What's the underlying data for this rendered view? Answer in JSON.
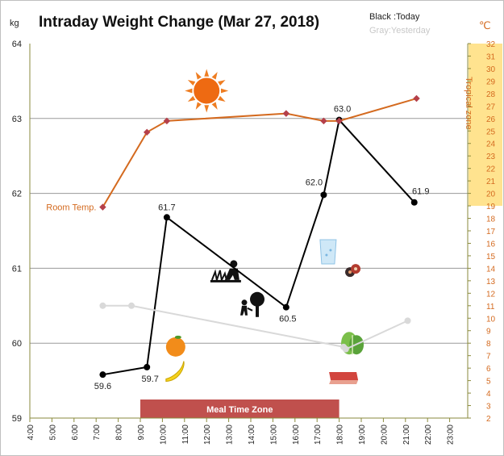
{
  "chart_data": {
    "type": "line",
    "title": "Intraday Weight Change (Mar 27, 2018)",
    "legend": {
      "today": "Black :Today",
      "yesterday": "Gray:Yesterday"
    },
    "y_left": {
      "unit": "kg",
      "min": 59,
      "max": 64,
      "ticks": [
        59,
        60,
        61,
        62,
        63,
        64
      ]
    },
    "y_right": {
      "unit": "℃",
      "min": 2,
      "max": 32,
      "ticks": [
        2,
        3,
        4,
        5,
        6,
        7,
        8,
        9,
        10,
        11,
        12,
        13,
        14,
        15,
        16,
        17,
        18,
        19,
        20,
        21,
        22,
        23,
        24,
        25,
        26,
        27,
        28,
        29,
        30,
        31,
        32
      ],
      "highlight_from": 19,
      "highlight_to": 32,
      "highlight_label": "Tropical zone"
    },
    "x_axis": {
      "min": 4,
      "max": 24,
      "tick_labels": [
        "4:00",
        "5:00",
        "6:00",
        "7:00",
        "8:00",
        "9:00",
        "10:00",
        "11:00",
        "12:00",
        "13:00",
        "14:00",
        "15:00",
        "16:00",
        "17:00",
        "18:00",
        "19:00",
        "20:00",
        "21:00",
        "22:00",
        "23:00"
      ]
    },
    "meal_zone": {
      "label": "Meal Time Zone",
      "from": 9.0,
      "to": 18.0
    },
    "series": [
      {
        "name": "Today",
        "color": "#000000",
        "points": [
          {
            "x": 7.3,
            "y": 59.58,
            "label": "59.6"
          },
          {
            "x": 9.3,
            "y": 59.68,
            "label": "59.7"
          },
          {
            "x": 10.2,
            "y": 61.68,
            "label": "61.7"
          },
          {
            "x": 15.6,
            "y": 60.48,
            "label": "60.5"
          },
          {
            "x": 17.3,
            "y": 61.98,
            "label": "62.0"
          },
          {
            "x": 18.0,
            "y": 62.98,
            "label": "63.0"
          },
          {
            "x": 21.4,
            "y": 61.88,
            "label": "61.9"
          }
        ]
      },
      {
        "name": "Yesterday",
        "color": "#d9d9d9",
        "points": [
          {
            "x": 7.3,
            "y": 60.5
          },
          {
            "x": 8.6,
            "y": 60.5
          },
          {
            "x": 18.2,
            "y": 59.95
          },
          {
            "x": 18.3,
            "y": 59.92
          },
          {
            "x": 21.1,
            "y": 60.3
          }
        ]
      },
      {
        "name": "Room Temp.",
        "color": "#d46a1f",
        "marker_color": "#b5404a",
        "axis": "right",
        "points": [
          {
            "x": 7.3,
            "y": 18.9
          },
          {
            "x": 9.3,
            "y": 24.9
          },
          {
            "x": 10.2,
            "y": 25.8
          },
          {
            "x": 15.6,
            "y": 26.4
          },
          {
            "x": 17.3,
            "y": 25.8
          },
          {
            "x": 18.0,
            "y": 25.8
          },
          {
            "x": 21.5,
            "y": 27.6
          }
        ]
      }
    ],
    "icons": [
      {
        "name": "sun-icon",
        "x": 12.0,
        "y": 63.37
      },
      {
        "name": "gardening-icon",
        "x": 12.9,
        "y": 60.93
      },
      {
        "name": "tree-watering-icon",
        "x": 14.0,
        "y": 60.5
      },
      {
        "name": "water-glass-icon",
        "x": 17.5,
        "y": 61.22
      },
      {
        "name": "pills-icon",
        "x": 18.6,
        "y": 60.97
      },
      {
        "name": "orange-icon",
        "x": 10.6,
        "y": 59.95
      },
      {
        "name": "banana-icon",
        "x": 10.6,
        "y": 59.63
      },
      {
        "name": "lettuce-icon",
        "x": 18.6,
        "y": 60.0
      },
      {
        "name": "steak-icon",
        "x": 18.2,
        "y": 59.55
      }
    ]
  }
}
